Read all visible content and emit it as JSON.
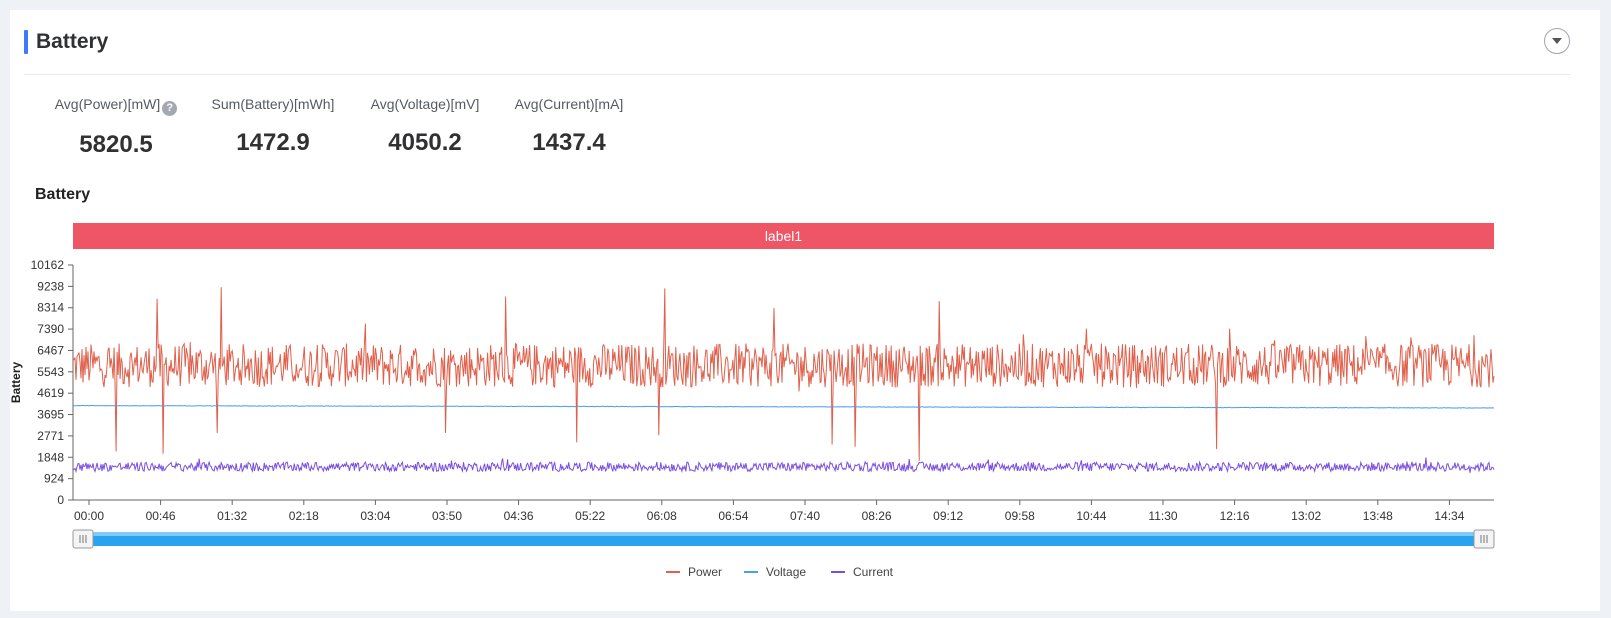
{
  "header": {
    "title": "Battery"
  },
  "stats": [
    {
      "label": "Avg(Power)[mW]",
      "value": "5820.5",
      "has_help": true
    },
    {
      "label": "Sum(Battery)[mWh]",
      "value": "1472.9",
      "has_help": false
    },
    {
      "label": "Avg(Voltage)[mV]",
      "value": "4050.2",
      "has_help": false
    },
    {
      "label": "Avg(Current)[mA]",
      "value": "1437.4",
      "has_help": false
    }
  ],
  "help_glyph": "?",
  "chart_data": {
    "type": "line",
    "title": "Battery",
    "ylabel": "Battery",
    "band_label": "label1",
    "band_color": "#ee5565",
    "yticks": [
      0,
      924,
      1848,
      2771,
      3695,
      4619,
      5543,
      6467,
      7390,
      8314,
      9238,
      10162
    ],
    "ylim": [
      0,
      10162
    ],
    "xticks": [
      "00:00",
      "00:46",
      "01:32",
      "02:18",
      "03:04",
      "03:50",
      "04:36",
      "05:22",
      "06:08",
      "06:54",
      "07:40",
      "08:26",
      "09:12",
      "09:58",
      "10:44",
      "11:30",
      "12:16",
      "13:02",
      "13:48",
      "14:34"
    ],
    "x_duration_minutes": 918,
    "legend_position": "bottom-center",
    "series": [
      {
        "name": "Power",
        "color": "#e0604b",
        "mean": 5820,
        "noise": 950,
        "spikes_high": [
          [
            84,
            8700
          ],
          [
            148,
            9200
          ],
          [
            432,
            8800
          ],
          [
            591,
            9150
          ],
          [
            700,
            8300
          ],
          [
            865,
            8600
          ]
        ],
        "spikes_low": [
          [
            43,
            2100
          ],
          [
            90,
            2000
          ],
          [
            144,
            2900
          ],
          [
            372,
            2900
          ],
          [
            503,
            2500
          ],
          [
            585,
            2800
          ],
          [
            758,
            2400
          ],
          [
            781,
            2300
          ],
          [
            845,
            1700
          ],
          [
            1142,
            2200
          ]
        ]
      },
      {
        "name": "Voltage",
        "color": "#4b9bef",
        "start": 4080,
        "end": 3980
      },
      {
        "name": "Current",
        "color": "#7a4fe0",
        "mean": 1437,
        "noise": 200
      }
    ],
    "zoom": {
      "start": 0,
      "end": 100,
      "unit": "percent"
    }
  }
}
